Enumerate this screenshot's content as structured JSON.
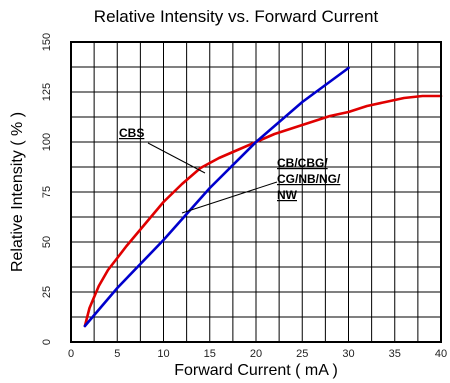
{
  "chart_data": {
    "type": "line",
    "title": "Relative Intensity vs. Forward Current",
    "xlabel": "Forward Current ( mA )",
    "ylabel": "Relative Intensity ( % )",
    "xlim": [
      0,
      40
    ],
    "ylim": [
      0,
      150
    ],
    "x_ticks": [
      0,
      5,
      10,
      15,
      20,
      25,
      30,
      35,
      40
    ],
    "y_ticks": [
      0,
      25,
      50,
      75,
      100,
      125,
      150
    ],
    "grid": true,
    "series": [
      {
        "name": "CBS",
        "color": "#e00000",
        "x": [
          1.5,
          2,
          3,
          4,
          5,
          6,
          8,
          10,
          12,
          14,
          16,
          18,
          20,
          22,
          24,
          26,
          28,
          30,
          32,
          34,
          36,
          38,
          40
        ],
        "y": [
          8,
          17,
          28,
          36,
          42,
          48,
          59,
          70,
          79,
          87,
          92,
          96,
          100,
          104,
          107,
          110,
          113,
          115,
          118,
          120,
          122,
          123,
          123
        ]
      },
      {
        "name": "CB/CBG/CG/NB/NG/NW",
        "color": "#0000cc",
        "x": [
          1.5,
          5,
          10,
          15,
          20,
          25,
          30
        ],
        "y": [
          8,
          27,
          51,
          77,
          100,
          120,
          137
        ]
      }
    ],
    "annotations": [
      {
        "lines": [
          "CBS"
        ]
      },
      {
        "lines": [
          "CB/CBG/",
          "CG/NB/NG/",
          "NW"
        ]
      }
    ]
  }
}
